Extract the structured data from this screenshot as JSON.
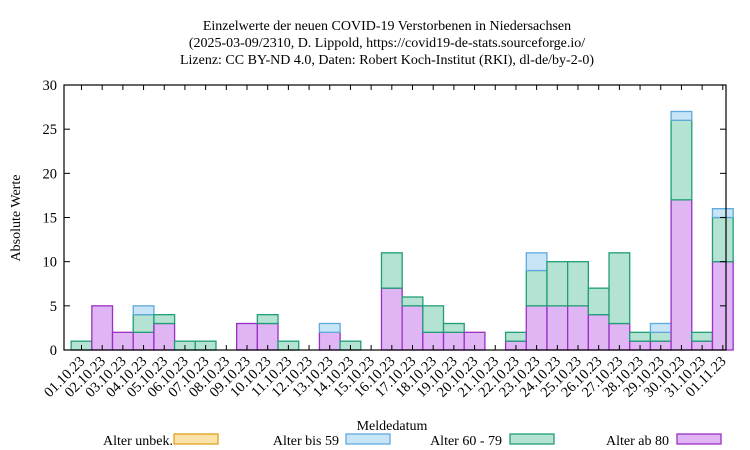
{
  "chart_data": {
    "type": "bar",
    "stacked": true,
    "title_lines": [
      "Einzelwerte der neuen COVID-19 Verstorbenen in Niedersachsen",
      "(2025-03-09/2310, D. Lippold, https://covid19-de-stats.sourceforge.io/",
      "Lizenz: CC BY-ND 4.0, Daten: Robert Koch-Institut (RKI), dl-de/by-2-0)"
    ],
    "xlabel": "Meldedatum",
    "ylabel": "Absolute Werte",
    "ylim": [
      0,
      30
    ],
    "yticks": [
      0,
      5,
      10,
      15,
      20,
      25,
      30
    ],
    "grid": false,
    "legend_position": "bottom",
    "categories": [
      "01.10.23",
      "02.10.23",
      "03.10.23",
      "04.10.23",
      "05.10.23",
      "06.10.23",
      "07.10.23",
      "08.10.23",
      "09.10.23",
      "10.10.23",
      "11.10.23",
      "12.10.23",
      "13.10.23",
      "14.10.23",
      "15.10.23",
      "16.10.23",
      "17.10.23",
      "18.10.23",
      "19.10.23",
      "20.10.23",
      "21.10.23",
      "22.10.23",
      "23.10.23",
      "24.10.23",
      "25.10.23",
      "26.10.23",
      "27.10.23",
      "28.10.23",
      "29.10.23",
      "30.10.23",
      "31.10.23",
      "01.11.23"
    ],
    "series": [
      {
        "name": "Alter ab 80",
        "fill": "#dfb5f3",
        "stroke": "#9b2fc4",
        "values": [
          0,
          5,
          2,
          2,
          3,
          0,
          0,
          0,
          3,
          3,
          0,
          0,
          2,
          0,
          0,
          7,
          5,
          2,
          2,
          2,
          0,
          1,
          5,
          5,
          5,
          4,
          3,
          1,
          1,
          17,
          1,
          10
        ]
      },
      {
        "name": "Alter 60 - 79",
        "fill": "#b5e3d3",
        "stroke": "#1f9e74",
        "values": [
          1,
          0,
          0,
          2,
          1,
          1,
          1,
          0,
          0,
          1,
          1,
          0,
          0,
          1,
          0,
          4,
          1,
          3,
          1,
          0,
          0,
          1,
          4,
          5,
          5,
          3,
          8,
          1,
          1,
          9,
          1,
          5
        ]
      },
      {
        "name": "Alter bis 59",
        "fill": "#c8e5f7",
        "stroke": "#5fa9de",
        "values": [
          0,
          0,
          0,
          1,
          0,
          0,
          0,
          0,
          0,
          0,
          0,
          0,
          1,
          0,
          0,
          0,
          0,
          0,
          0,
          0,
          0,
          0,
          2,
          0,
          0,
          0,
          0,
          0,
          1,
          1,
          0,
          1
        ]
      },
      {
        "name": "Alter unbek.",
        "fill": "#fbe2a8",
        "stroke": "#e0a21a",
        "values": [
          0,
          0,
          0,
          0,
          0,
          0,
          0,
          0,
          0,
          0,
          0,
          0,
          0,
          0,
          0,
          0,
          0,
          0,
          0,
          0,
          0,
          0,
          0,
          0,
          0,
          0,
          0,
          0,
          0,
          0,
          0,
          0
        ]
      }
    ],
    "legend_order": [
      "Alter unbek.",
      "Alter bis 59",
      "Alter 60 - 79",
      "Alter ab 80"
    ]
  }
}
